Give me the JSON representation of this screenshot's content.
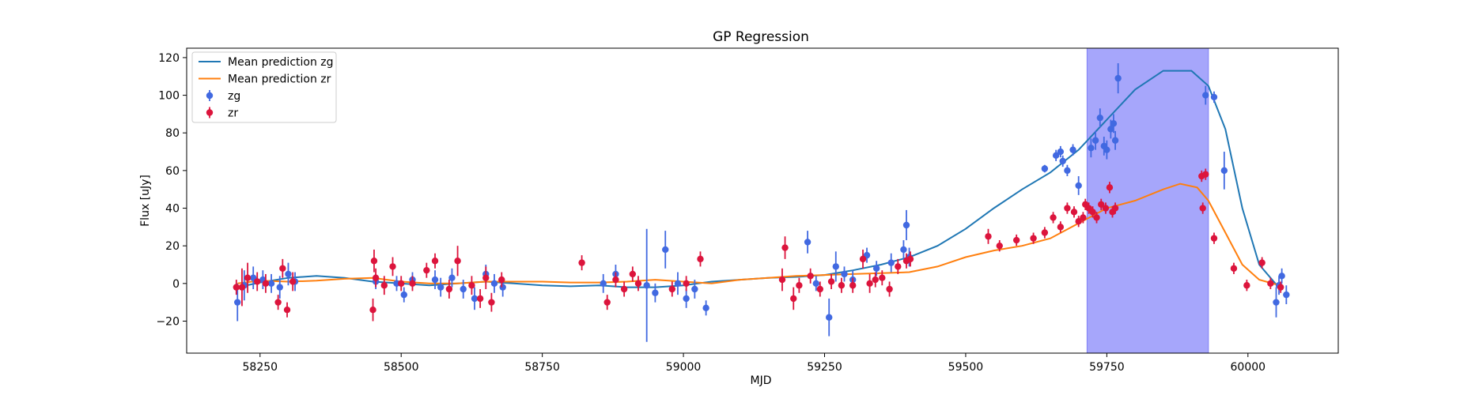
{
  "chart_data": {
    "type": "scatter",
    "title": "GP Regression",
    "xlabel": "MJD",
    "ylabel": "Flux [uJy]",
    "xlim": [
      58120,
      60160
    ],
    "ylim": [
      -37,
      125
    ],
    "xticks": [
      58250,
      58500,
      58750,
      59000,
      59250,
      59500,
      59750,
      60000
    ],
    "yticks": [
      -20,
      0,
      20,
      40,
      60,
      80,
      100,
      120
    ],
    "grid": false,
    "legend_position": "top-left",
    "highlight_band": {
      "x0": 59715,
      "x1": 59930,
      "color": "#a6a6fb"
    },
    "series": [
      {
        "name": "Mean prediction zg",
        "kind": "line",
        "color": "#1f77b4",
        "x": [
          58210,
          58250,
          58300,
          58350,
          58400,
          58450,
          58500,
          58550,
          58600,
          58650,
          58700,
          58750,
          58800,
          58850,
          58900,
          58950,
          59000,
          59050,
          59100,
          59150,
          59200,
          59250,
          59300,
          59350,
          59400,
          59450,
          59500,
          59550,
          59600,
          59650,
          59700,
          59750,
          59800,
          59850,
          59900,
          59930,
          59960,
          59990,
          60020,
          60050,
          60060
        ],
        "y": [
          -2,
          0.5,
          3,
          4,
          3,
          1,
          0,
          -1,
          0,
          1,
          0,
          -1,
          -1.5,
          -1,
          -2,
          -2,
          -1,
          1,
          2,
          3,
          3.5,
          4.5,
          7,
          10,
          14,
          20,
          29,
          40,
          50,
          59,
          71,
          87,
          103,
          113,
          113,
          105,
          82,
          40,
          10,
          -0.5,
          -1.5
        ]
      },
      {
        "name": "Mean prediction zr",
        "kind": "line",
        "color": "#ff7f0e",
        "x": [
          58210,
          58250,
          58300,
          58350,
          58400,
          58450,
          58500,
          58550,
          58600,
          58650,
          58700,
          58750,
          58800,
          58850,
          58900,
          58950,
          59000,
          59050,
          59100,
          59150,
          59200,
          59250,
          59300,
          59350,
          59400,
          59450,
          59500,
          59550,
          59600,
          59650,
          59700,
          59750,
          59800,
          59850,
          59880,
          59910,
          59930,
          59960,
          59990,
          60020,
          60050,
          60060
        ],
        "y": [
          0,
          1.5,
          1,
          1.5,
          2.5,
          3,
          1,
          0,
          0,
          1,
          1,
          1,
          0.5,
          0.5,
          1,
          2,
          1,
          0,
          2,
          3,
          4,
          4.5,
          5,
          5.5,
          6,
          9,
          14,
          17.5,
          20,
          24,
          32,
          40,
          44,
          50,
          53,
          51,
          44,
          27,
          10,
          2,
          -0.5,
          -1.5
        ]
      },
      {
        "name": "zg",
        "kind": "points",
        "color": "#4169e1",
        "x": [
          58210,
          58222,
          58238,
          58255,
          58270,
          58285,
          58300,
          58312,
          58455,
          58492,
          58505,
          58520,
          58560,
          58570,
          58590,
          58610,
          58630,
          58650,
          58665,
          58680,
          58858,
          58880,
          58935,
          58950,
          58968,
          58990,
          59005,
          59020,
          59040,
          59220,
          59235,
          59258,
          59270,
          59285,
          59300,
          59325,
          59342,
          59368,
          59390,
          59395,
          59400,
          59640,
          59660,
          59668,
          59672,
          59680,
          59690,
          59700,
          59722,
          59730,
          59738,
          59745,
          59750,
          59757,
          59762,
          59765,
          59770,
          59925,
          59940,
          59958,
          60050,
          60055,
          60060,
          60068
        ],
        "y": [
          -10,
          -1,
          3,
          2,
          0,
          -2,
          5,
          1,
          1,
          0,
          -6,
          2,
          2,
          -2,
          3,
          -3,
          -8,
          5,
          0,
          -2,
          0,
          5,
          -1,
          -5,
          18,
          0,
          -8,
          -3,
          -13,
          22,
          0,
          -18,
          9,
          5,
          2,
          15,
          8,
          11,
          18,
          31,
          14,
          61,
          68,
          70,
          65,
          60,
          71,
          52,
          72,
          76,
          88,
          73,
          71,
          82,
          85,
          76,
          109,
          100,
          99,
          60,
          -10,
          -1,
          4,
          -6
        ],
        "err": [
          10,
          8,
          6,
          5,
          5,
          6,
          6,
          5,
          4,
          4,
          4,
          4,
          5,
          5,
          5,
          5,
          6,
          5,
          5,
          5,
          5,
          5,
          30,
          5,
          10,
          6,
          5,
          5,
          4,
          6,
          4,
          10,
          8,
          4,
          5,
          4,
          4,
          5,
          5,
          8,
          5,
          2,
          3,
          3,
          3,
          3,
          3,
          5,
          5,
          5,
          5,
          5,
          5,
          5,
          5,
          5,
          8,
          5,
          3,
          10,
          8,
          5,
          4,
          5
        ]
      },
      {
        "name": "zr",
        "kind": "points",
        "color": "#dc143c",
        "x": [
          58208,
          58218,
          58228,
          58245,
          58260,
          58282,
          58290,
          58298,
          58308,
          58450,
          58452,
          58455,
          58470,
          58485,
          58500,
          58520,
          58545,
          58560,
          58585,
          58600,
          58625,
          58640,
          58650,
          58660,
          58678,
          58820,
          58865,
          58880,
          58895,
          58910,
          58920,
          58980,
          59005,
          59030,
          59175,
          59180,
          59195,
          59205,
          59225,
          59242,
          59262,
          59280,
          59300,
          59318,
          59330,
          59340,
          59352,
          59365,
          59380,
          59395,
          59402,
          59540,
          59560,
          59590,
          59620,
          59640,
          59655,
          59668,
          59680,
          59692,
          59700,
          59708,
          59712,
          59718,
          59725,
          59732,
          59740,
          59748,
          59755,
          59760,
          59765,
          59918,
          59920,
          59925,
          59940,
          59975,
          59998,
          60025,
          60040,
          60058
        ],
        "y": [
          -2,
          -2,
          3,
          1,
          0,
          -10,
          8,
          -14,
          1,
          -14,
          12,
          3,
          -1,
          9,
          0,
          0,
          7,
          12,
          -3,
          12,
          -1,
          -8,
          3,
          -10,
          2,
          11,
          -10,
          2,
          -3,
          5,
          0,
          -3,
          0,
          13,
          2,
          19,
          -8,
          -1,
          4,
          -3,
          1,
          -1,
          -1,
          13,
          0,
          2,
          3,
          -3,
          9,
          12,
          13,
          25,
          20,
          23,
          24,
          27,
          35,
          30,
          40,
          38,
          33,
          35,
          42,
          40,
          38,
          35,
          42,
          40,
          51,
          38,
          40,
          57,
          40,
          58,
          24,
          8,
          -1,
          11,
          0,
          -2
        ],
        "err": [
          4,
          10,
          8,
          5,
          5,
          4,
          5,
          4,
          5,
          6,
          6,
          5,
          5,
          5,
          4,
          4,
          4,
          4,
          5,
          8,
          5,
          5,
          6,
          5,
          4,
          4,
          4,
          4,
          4,
          4,
          4,
          4,
          4,
          4,
          6,
          6,
          6,
          4,
          4,
          4,
          4,
          4,
          4,
          5,
          5,
          4,
          4,
          4,
          4,
          4,
          4,
          4,
          3,
          3,
          3,
          3,
          3,
          3,
          3,
          3,
          3,
          3,
          3,
          3,
          3,
          3,
          3,
          3,
          3,
          3,
          3,
          3,
          3,
          3,
          3,
          3,
          3,
          3,
          3,
          3
        ]
      }
    ]
  }
}
